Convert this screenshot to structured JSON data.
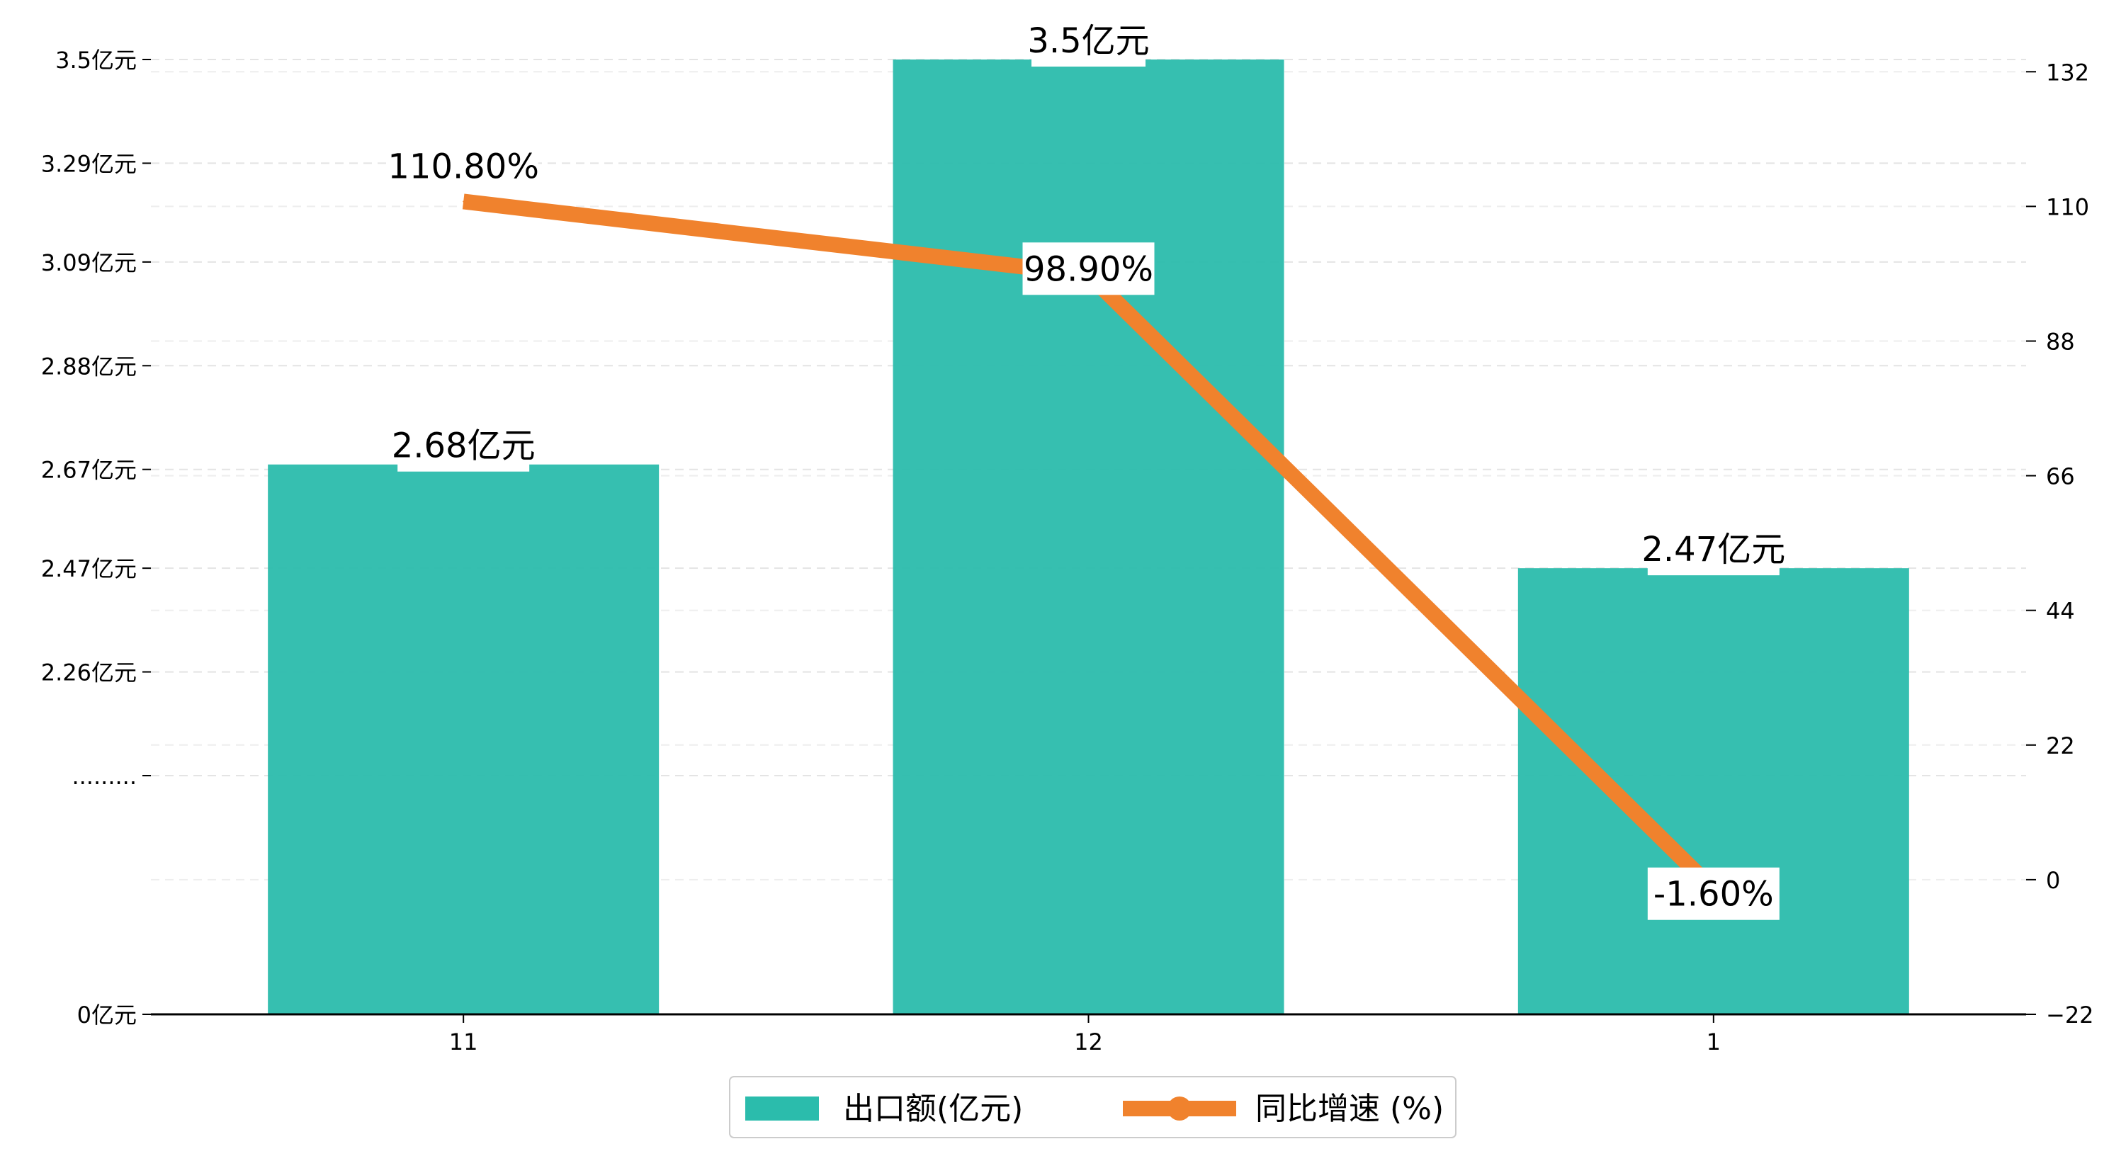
{
  "chart_data": {
    "type": "bar",
    "categories": [
      "11",
      "12",
      "1"
    ],
    "series": [
      {
        "name": "出口额(亿元)",
        "type": "bar",
        "axis": "left",
        "values": [
          2.68,
          3.5,
          2.47
        ],
        "labels": [
          "2.68亿元",
          "3.5亿元",
          "2.47亿元"
        ],
        "color": "#2bbcac"
      },
      {
        "name": "同比增速 (%)",
        "type": "line",
        "axis": "right",
        "values": [
          110.8,
          98.9,
          -1.6
        ],
        "labels": [
          "110.80%",
          "98.90%",
          "-1.60%"
        ],
        "color": "#f0822d"
      }
    ],
    "left_axis": {
      "ticks": [
        {
          "value": 0,
          "label": "0亿元"
        },
        {
          "value": 1,
          "label": "........."
        },
        {
          "value": 2.26,
          "label": "2.26亿元"
        },
        {
          "value": 2.47,
          "label": "2.47亿元"
        },
        {
          "value": 2.67,
          "label": "2.67亿元"
        },
        {
          "value": 2.88,
          "label": "2.88亿元"
        },
        {
          "value": 3.09,
          "label": "3.09亿元"
        },
        {
          "value": 3.29,
          "label": "3.29亿元"
        },
        {
          "value": 3.5,
          "label": "3.5亿元"
        }
      ],
      "break": {
        "data": [
          0,
          2.05
        ],
        "visual_fraction": 0.25
      }
    },
    "right_axis": {
      "ticks": [
        -22,
        0,
        22,
        44,
        66,
        88,
        110,
        132
      ],
      "ylim": [
        -22,
        134
      ]
    },
    "grid": "horizontal-dashed",
    "legend": "bottom-center"
  }
}
